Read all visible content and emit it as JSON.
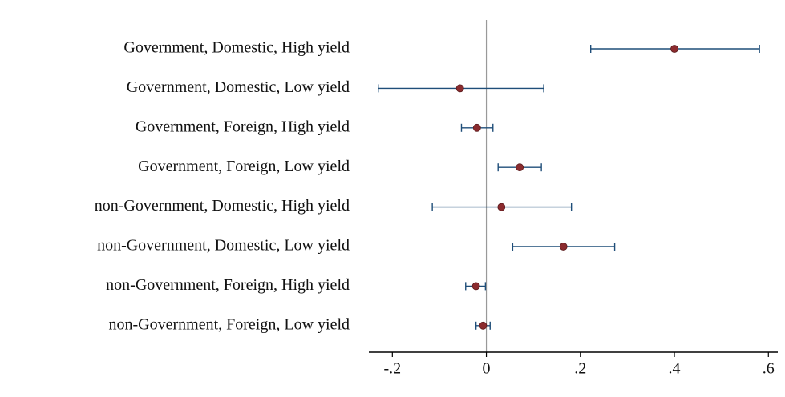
{
  "chart_data": {
    "type": "coefplot",
    "categories": [
      "Government, Domestic, High yield",
      "Government, Domestic, Low yield",
      "Government, Foreign, High yield",
      "Government, Foreign, Low yield",
      "non-Government, Domestic, High yield",
      "non-Government, Domestic, Low yield",
      "non-Government, Foreign, High yield",
      "non-Government, Foreign, Low yield"
    ],
    "series": [
      {
        "color": "#8b2b2e",
        "error_color": "#1f4e79",
        "values": [
          0.4,
          -0.056,
          -0.02,
          0.071,
          0.032,
          0.164,
          -0.022,
          -0.007
        ],
        "lower": [
          0.222,
          -0.23,
          -0.053,
          0.025,
          -0.115,
          0.056,
          -0.044,
          -0.022
        ],
        "upper": [
          0.581,
          0.122,
          0.014,
          0.117,
          0.181,
          0.273,
          -0.002,
          0.008
        ]
      }
    ],
    "xlim": [
      -0.25,
      0.62
    ],
    "xticks": [
      {
        "value": -0.2,
        "label": "-.2"
      },
      0,
      {
        "value": 0.2,
        "label": ".2"
      },
      {
        "value": 0.4,
        "label": ".4"
      },
      {
        "value": 0.6,
        "label": ".6"
      }
    ],
    "reference_line": 0
  }
}
